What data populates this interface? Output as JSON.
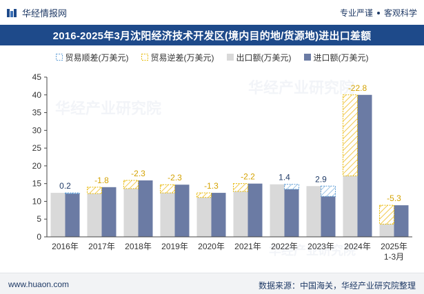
{
  "header": {
    "brand": "华经情报网",
    "tagline_left": "专业严谨",
    "tagline_right": "客观科学"
  },
  "watermark": {
    "text": "华经产业研究院",
    "url": "www.huaon.com"
  },
  "footer": {
    "url": "www.huaon.com",
    "source": "数据来源：中国海关，华经产业研究院整理"
  },
  "colors": {
    "brand": "#1e4a8a",
    "surplus": "#7fb3d5",
    "deficit": "#f2c94c",
    "exports": "#d9d9d9",
    "imports": "#6b7ba4"
  },
  "chart_data": {
    "type": "bar",
    "title": "2016-2025年3月沈阳经济技术开发区(境内目的地/货源地)进出口差额",
    "categories": [
      "2016年",
      "2017年",
      "2018年",
      "2019年",
      "2020年",
      "2021年",
      "2022年",
      "2023年",
      "2024年",
      "2025年\n1-3月"
    ],
    "ylim": [
      0,
      45
    ],
    "yticks": [
      0,
      5,
      10,
      15,
      20,
      25,
      30,
      35,
      40,
      45
    ],
    "series": [
      {
        "name": "出口额(万美元)",
        "values": [
          12.4,
          12.2,
          13.6,
          12.4,
          11.1,
          12.8,
          14.8,
          14.3,
          17.2,
          3.6
        ]
      },
      {
        "name": "进口额(万美元)",
        "values": [
          12.2,
          14.0,
          15.9,
          14.7,
          12.4,
          15.0,
          13.4,
          11.4,
          40.0,
          8.9
        ]
      }
    ],
    "balance_series": [
      {
        "name": "贸易顺差(万美元)",
        "kind": "surplus"
      },
      {
        "name": "贸易逆差(万美元)",
        "kind": "deficit"
      }
    ],
    "balance_labels": [
      "0.2",
      "-1.8",
      "-2.3",
      "-2.3",
      "-1.3",
      "-2.2",
      "1.4",
      "2.9",
      "-22.8",
      "-5.3"
    ],
    "balance_values": [
      0.2,
      -1.8,
      -2.3,
      -2.3,
      -1.3,
      -2.2,
      1.4,
      2.9,
      -22.8,
      -5.3
    ],
    "legend_position": "top-center",
    "grid": false
  }
}
